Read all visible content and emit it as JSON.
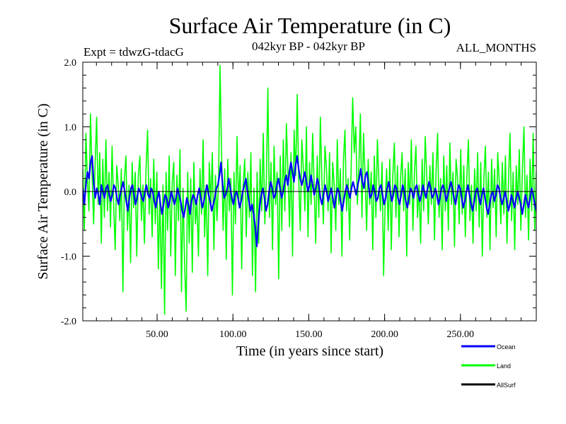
{
  "chart_data": {
    "type": "line",
    "title": "Surface Air Temperature (in C)",
    "subtitle_left": "Expt = tdwzG-tdacG",
    "subtitle_center": "042kyr BP - 042kyr BP",
    "subtitle_right": "ALL_MONTHS",
    "xlabel": "Time (in years since start)",
    "ylabel": "Surface Air Temperature (in C)",
    "xlim": [
      1,
      300
    ],
    "ylim": [
      -2.0,
      2.0
    ],
    "x_ticks": [
      50,
      100,
      150,
      200,
      250
    ],
    "x_tick_labels": [
      "50.00",
      "100.00",
      "150.00",
      "200.00",
      "250.00"
    ],
    "y_ticks": [
      -2.0,
      -1.0,
      0.0,
      1.0,
      2.0
    ],
    "y_tick_labels": [
      "-2.0",
      "-1.0",
      "0.0",
      "1.0",
      "2.0"
    ],
    "zero_line": true,
    "grid": false,
    "legend_position": "bottom-right",
    "series": [
      {
        "name": "Ocean",
        "color": "#0000ff",
        "description": "annual mean anomaly, mostly within -0.5 to 0.6",
        "values": [
          0.05,
          -0.2,
          0.1,
          0.3,
          0.2,
          0.45,
          0.55,
          0.15,
          -0.1,
          0.05,
          -0.05,
          -0.2,
          0.1,
          0.0,
          -0.1,
          0.05,
          0.1,
          -0.05,
          -0.15,
          -0.05,
          0.1,
          0.05,
          -0.1,
          -0.2,
          -0.05,
          0.05,
          0.15,
          0.0,
          -0.15,
          -0.3,
          -0.1,
          0.05,
          0.1,
          -0.05,
          -0.2,
          -0.1,
          0.05,
          0.0,
          -0.1,
          -0.15,
          0.0,
          0.1,
          -0.05,
          -0.1,
          0.05,
          0.0,
          -0.15,
          -0.25,
          -0.1,
          0.0,
          -0.2,
          -0.35,
          -0.2,
          -0.05,
          -0.1,
          -0.25,
          -0.15,
          0.0,
          -0.1,
          -0.2,
          -0.1,
          0.05,
          -0.05,
          -0.15,
          -0.3,
          -0.4,
          -0.25,
          -0.1,
          -0.2,
          -0.35,
          -0.15,
          -0.05,
          -0.1,
          -0.2,
          -0.05,
          0.05,
          -0.1,
          -0.25,
          -0.15,
          0.0,
          0.1,
          -0.05,
          -0.15,
          -0.3,
          -0.2,
          -0.1,
          0.05,
          0.1,
          0.25,
          0.45,
          0.1,
          -0.1,
          -0.05,
          0.05,
          0.2,
          0.05,
          -0.1,
          -0.2,
          -0.05,
          0.0,
          -0.1,
          -0.25,
          -0.15,
          0.0,
          0.1,
          0.2,
          0.0,
          -0.15,
          -0.3,
          -0.2,
          -0.35,
          -0.55,
          -0.85,
          -0.5,
          -0.2,
          -0.05,
          0.05,
          -0.1,
          -0.3,
          -0.2,
          0.0,
          0.15,
          0.05,
          -0.1,
          -0.05,
          0.1,
          0.2,
          0.05,
          -0.1,
          0.0,
          0.15,
          0.25,
          0.1,
          0.3,
          0.45,
          0.3,
          0.15,
          0.4,
          0.55,
          0.35,
          0.2,
          0.1,
          0.2,
          0.3,
          0.15,
          0.0,
          0.1,
          0.25,
          0.1,
          -0.05,
          0.05,
          0.2,
          0.1,
          -0.1,
          -0.2,
          -0.05,
          0.1,
          0.0,
          -0.15,
          -0.05,
          0.05,
          -0.1,
          -0.25,
          -0.1,
          0.05,
          0.0,
          -0.15,
          -0.3,
          -0.15,
          0.0,
          0.1,
          0.0,
          -0.1,
          0.05,
          0.15,
          0.05,
          -0.05,
          0.1,
          0.2,
          0.35,
          0.15,
          0.05,
          0.25,
          0.3,
          0.1,
          -0.1,
          -0.05,
          0.1,
          0.0,
          -0.15,
          -0.1,
          0.05,
          0.1,
          -0.05,
          -0.2,
          -0.1,
          0.05,
          0.15,
          0.0,
          -0.15,
          -0.05,
          0.1,
          0.05,
          -0.1,
          -0.2,
          -0.05,
          0.1,
          0.0,
          -0.15,
          -0.25,
          -0.1,
          0.05,
          0.0,
          -0.1,
          0.05,
          0.1,
          -0.05,
          -0.15,
          -0.05,
          0.1,
          0.0,
          -0.1,
          0.05,
          0.15,
          0.05,
          -0.1,
          -0.05,
          0.05,
          -0.05,
          -0.2,
          -0.1,
          0.05,
          0.1,
          0.0,
          -0.15,
          -0.05,
          0.05,
          0.15,
          0.05,
          -0.1,
          -0.2,
          -0.05,
          0.1,
          0.05,
          -0.1,
          -0.25,
          -0.15,
          0.0,
          0.1,
          -0.05,
          -0.2,
          -0.3,
          -0.15,
          0.0,
          0.05,
          -0.1,
          -0.2,
          -0.05,
          0.05,
          -0.1,
          -0.25,
          -0.35,
          -0.2,
          -0.05,
          0.0,
          -0.15,
          -0.05,
          0.1,
          0.05,
          -0.1,
          -0.2,
          -0.1,
          0.0,
          -0.15,
          -0.3,
          -0.2,
          -0.05,
          -0.15,
          -0.25,
          -0.1,
          0.0,
          -0.1,
          -0.2,
          -0.35,
          -0.2,
          -0.05,
          -0.15,
          -0.25,
          -0.1,
          0.05,
          -0.05,
          -0.2,
          -0.3
        ]
      },
      {
        "name": "Land",
        "color": "#00ff00",
        "description": "annual mean anomaly, mostly within -1.3 to 1.2",
        "values": [
          0.35,
          -0.6,
          0.9,
          0.2,
          -0.3,
          1.2,
          0.3,
          -0.5,
          0.4,
          1.15,
          -0.2,
          0.6,
          -0.8,
          0.5,
          -0.4,
          0.8,
          -0.3,
          0.3,
          -0.55,
          0.7,
          -0.2,
          -0.9,
          0.4,
          0.1,
          -0.45,
          0.35,
          -1.55,
          0.2,
          0.55,
          -0.6,
          0.1,
          -1.1,
          0.45,
          -0.25,
          0.3,
          -1.0,
          0.25,
          0.55,
          -0.45,
          0.1,
          -0.8,
          0.35,
          0.95,
          -0.35,
          0.2,
          -0.7,
          0.5,
          -0.5,
          0.3,
          -1.2,
          -0.05,
          -1.5,
          0.1,
          -1.9,
          0.3,
          -0.6,
          0.55,
          -1.0,
          0.15,
          0.45,
          -1.3,
          0.25,
          -0.45,
          0.65,
          -1.55,
          0.05,
          -1.1,
          -1.85,
          0.3,
          -0.8,
          0.2,
          -1.25,
          0.45,
          -0.5,
          -0.15,
          -1.0,
          0.35,
          -0.35,
          0.8,
          -0.7,
          0.1,
          -1.3,
          0.45,
          -0.2,
          0.6,
          -0.9,
          0.25,
          -0.45,
          0.15,
          1.95,
          0.6,
          -0.6,
          0.35,
          -1.05,
          0.5,
          -0.3,
          0.2,
          -1.6,
          0.3,
          -0.5,
          0.85,
          -0.2,
          0.4,
          -1.2,
          0.1,
          0.5,
          -0.7,
          0.3,
          -0.4,
          0.6,
          -1.3,
          0.05,
          -1.55,
          0.3,
          -0.8,
          0.5,
          -0.3,
          0.9,
          -0.5,
          0.2,
          1.6,
          -0.4,
          0.45,
          -0.9,
          0.7,
          -0.2,
          0.3,
          -1.35,
          0.55,
          -0.6,
          0.8,
          -0.3,
          1.05,
          0.3,
          -0.55,
          0.6,
          -1.0,
          0.95,
          0.25,
          1.5,
          0.2,
          -0.6,
          0.8,
          0.35,
          -0.3,
          1.0,
          -0.7,
          0.45,
          -0.2,
          0.9,
          0.1,
          -0.8,
          0.55,
          -0.4,
          1.15,
          0.2,
          -0.5,
          0.7,
          0.35,
          -0.3,
          0.6,
          -0.95,
          0.45,
          0.1,
          -0.6,
          0.8,
          -0.2,
          0.35,
          -1.0,
          0.5,
          0.95,
          -0.3,
          0.2,
          -0.75,
          0.4,
          1.45,
          0.6,
          1.0,
          -0.2,
          0.4,
          1.2,
          -0.4,
          0.9,
          0.25,
          -0.6,
          0.5,
          -0.2,
          0.3,
          -0.9,
          0.55,
          -0.4,
          0.8,
          0.15,
          -0.3,
          0.45,
          -1.3,
          -0.2,
          0.35,
          -0.6,
          0.5,
          -0.9,
          0.25,
          0.75,
          -0.4,
          0.4,
          -0.7,
          0.2,
          0.6,
          -0.3,
          0.35,
          -1.0,
          0.45,
          -0.2,
          0.8,
          -0.6,
          0.3,
          0.7,
          -0.4,
          0.1,
          -0.8,
          0.5,
          -0.3,
          0.85,
          0.25,
          -0.5,
          0.4,
          -0.2,
          0.6,
          -0.75,
          0.3,
          0.9,
          -0.4,
          0.2,
          -0.9,
          0.55,
          -0.3,
          0.4,
          -0.6,
          0.75,
          -0.2,
          0.3,
          -0.85,
          0.5,
          0.2,
          -0.5,
          0.65,
          -0.35,
          0.4,
          -0.7,
          0.25,
          0.8,
          -0.45,
          0.1,
          -0.8,
          0.35,
          -0.3,
          0.6,
          -0.55,
          0.45,
          -1.0,
          0.2,
          0.7,
          -0.4,
          0.3,
          -0.9,
          0.5,
          -0.25,
          0.35,
          -0.7,
          0.6,
          0.15,
          -0.5,
          0.45,
          -0.35,
          0.55,
          -0.8,
          0.2,
          0.9,
          -0.45,
          0.3,
          -0.9,
          0.4,
          -0.2,
          0.65,
          -0.6,
          0.35,
          1.0,
          -0.4,
          0.25,
          -0.75,
          0.5,
          -0.3,
          0.9,
          -0.6,
          0.3
        ]
      },
      {
        "name": "AllSurf",
        "color": "#000000",
        "values": []
      }
    ]
  }
}
